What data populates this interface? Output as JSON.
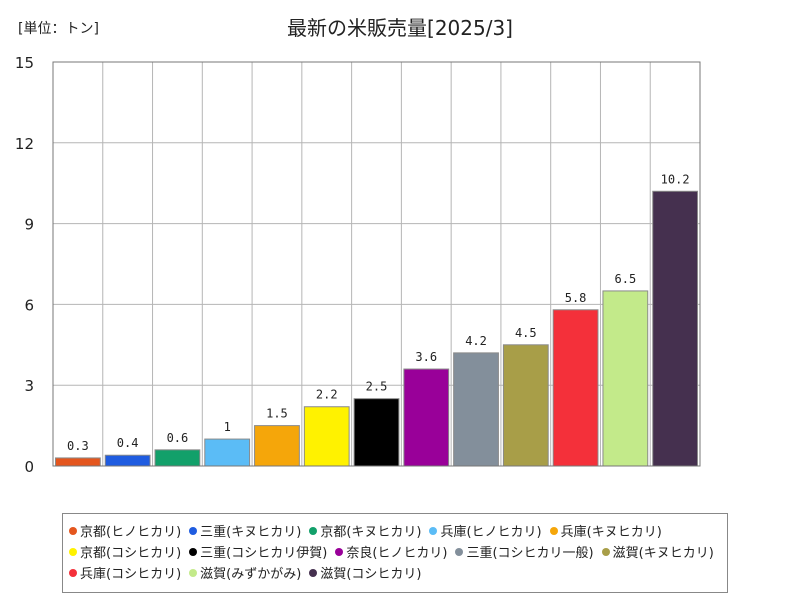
{
  "chart_data": {
    "type": "bar",
    "title": "最新の米販売量[2025/3]",
    "unit_label": "[単位：トン]",
    "xlabel": "",
    "ylabel": "",
    "ylim": [
      0,
      15
    ],
    "yticks": [
      0,
      3,
      6,
      9,
      12,
      15
    ],
    "grid": true,
    "legend_position": "bottom",
    "categories": [
      "京都(ヒノヒカリ)",
      "三重(キヌヒカリ)",
      "京都(キヌヒカリ)",
      "兵庫(ヒノヒカリ)",
      "兵庫(キヌヒカリ)",
      "京都(コシヒカリ)",
      "三重(コシヒカリ伊賀)",
      "奈良(ヒノヒカリ)",
      "三重(コシヒカリ一般)",
      "滋賀(キヌヒカリ)",
      "兵庫(コシヒカリ)",
      "滋賀(みずかがみ)",
      "滋賀(コシヒカリ)"
    ],
    "values": [
      0.3,
      0.4,
      0.6,
      1,
      1.5,
      2.2,
      2.5,
      3.6,
      4.2,
      4.5,
      5.8,
      6.5,
      10.2
    ],
    "value_labels": [
      "0.3",
      "0.4",
      "0.6",
      "1",
      "1.5",
      "2.2",
      "2.5",
      "3.6",
      "4.2",
      "4.5",
      "5.8",
      "6.5",
      "10.2"
    ],
    "colors": [
      "#e4561e",
      "#1f5ce0",
      "#12a06a",
      "#5bbcf6",
      "#f5a60a",
      "#fff200",
      "#000000",
      "#990099",
      "#838f9b",
      "#a89e48",
      "#f4303a",
      "#c3ea8a",
      "#45304f"
    ]
  }
}
